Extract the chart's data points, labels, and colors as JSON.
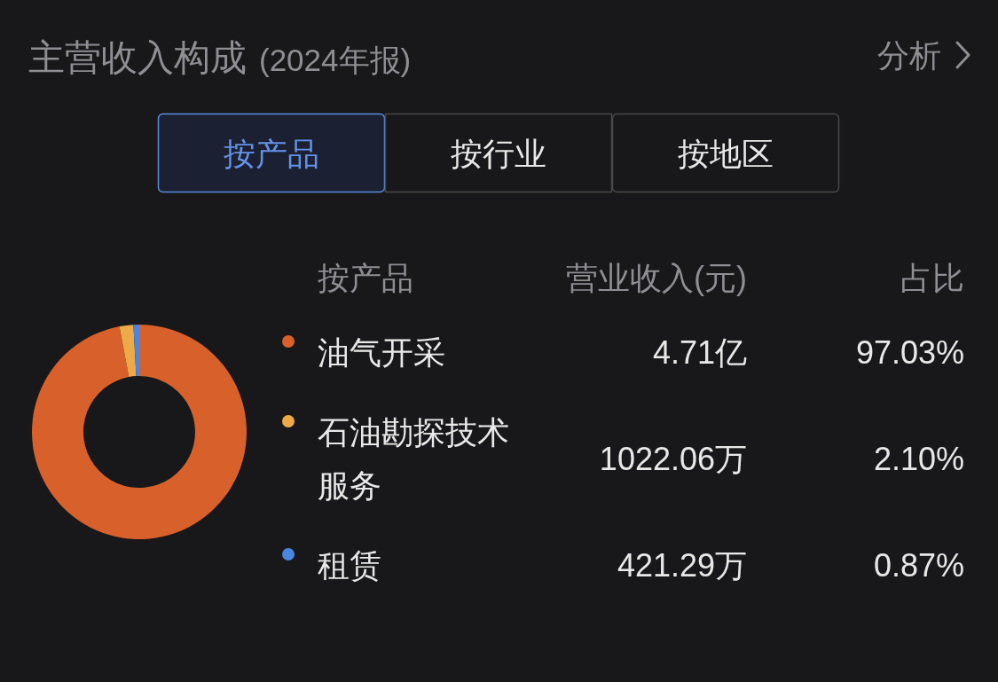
{
  "chart_data": {
    "type": "donut",
    "title": "主营收入构成",
    "subtitle": "(2024年报)",
    "legend_title": "按产品",
    "categories": [
      "油气开采",
      "石油勘探技术服务",
      "租赁"
    ],
    "values": [
      97.03,
      2.1,
      0.87
    ],
    "colors": [
      "#d8602a",
      "#eeaa48",
      "#4a86e0"
    ],
    "value_labels": [
      "97.03%",
      "2.10%",
      "0.87%"
    ],
    "legend": "right",
    "annotations": [
      "分析",
      "按产品",
      "按行业",
      "按地区",
      "营业收入(元)",
      "占比",
      "4.71亿",
      "1022.06万",
      "421.29万"
    ]
  }
}
